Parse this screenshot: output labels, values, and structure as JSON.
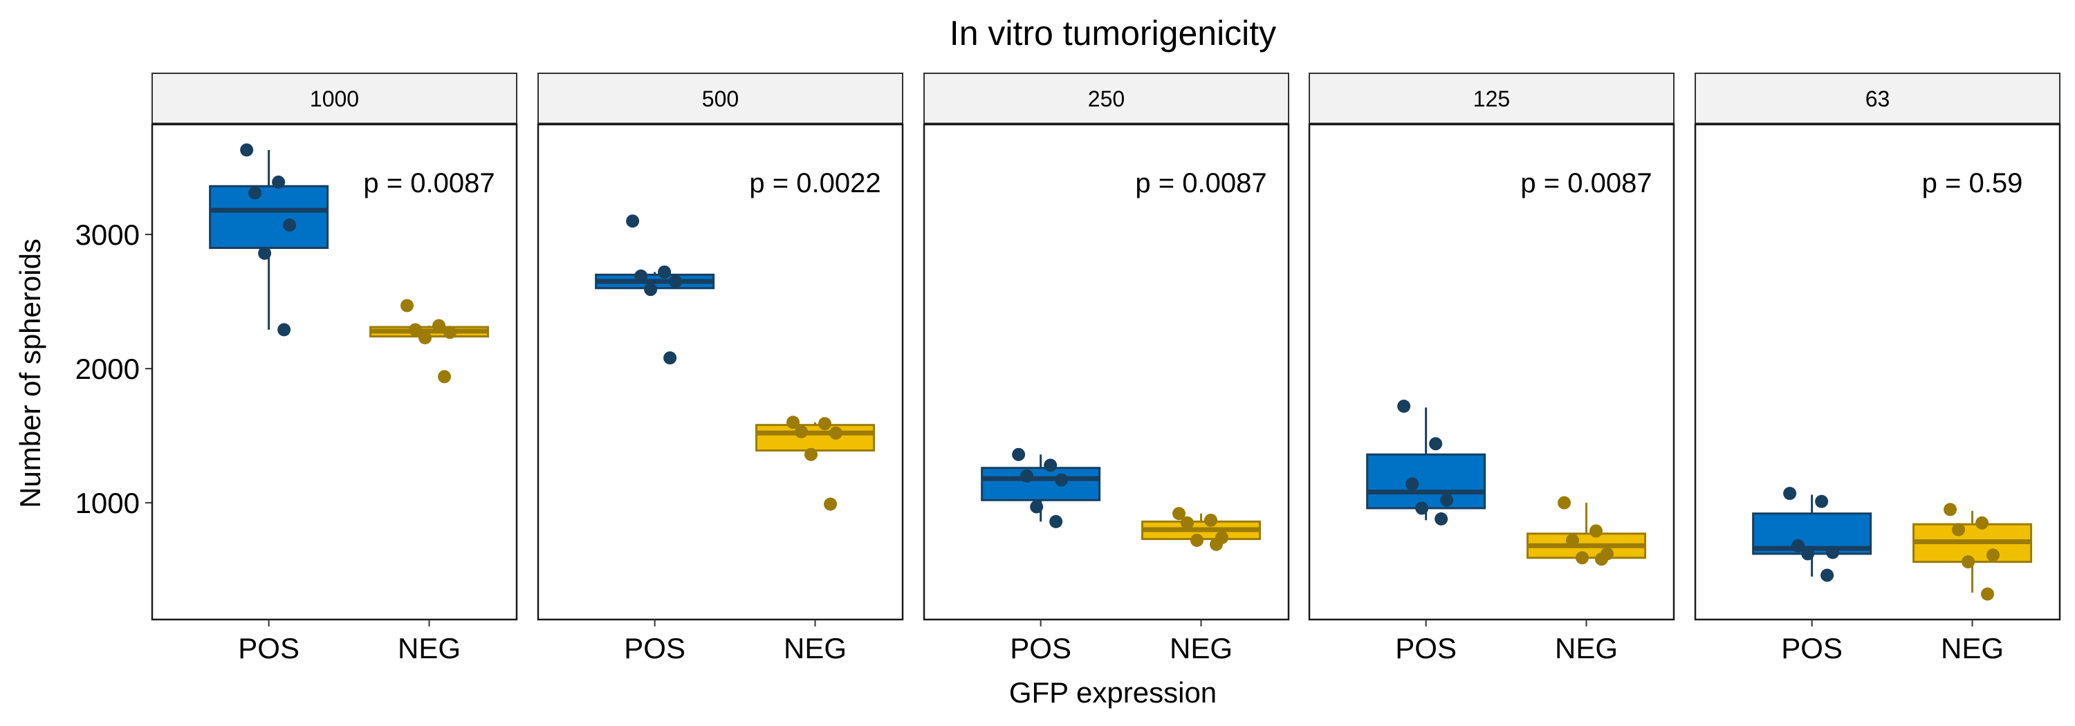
{
  "chart_data": {
    "type": "box",
    "title": "In vitro tumorigenicity",
    "xlabel": "GFP expression",
    "ylabel": "Number of spheroids",
    "categories": [
      "POS",
      "NEG"
    ],
    "ylim": [
      130,
      3820
    ],
    "yticks": [
      1000,
      2000,
      3000
    ],
    "colors": {
      "POS": {
        "fill": "#0072C6",
        "line": "#173F5F",
        "point": "#173F5F"
      },
      "NEG": {
        "fill": "#F0BF00",
        "line": "#9C7C06",
        "point": "#9C7C06"
      }
    },
    "panels": [
      {
        "facet": "1000",
        "p_value": "p = 0.0087",
        "groups": [
          {
            "category": "POS",
            "box": {
              "min": 2290,
              "q1": 2900,
              "median": 3180,
              "q3": 3360,
              "max": 3630
            },
            "points": [
              3630,
              3390,
              3310,
              3070,
              2860,
              2290
            ]
          },
          {
            "category": "NEG",
            "box": {
              "min": 2230,
              "q1": 2240,
              "median": 2280,
              "q3": 2310,
              "max": 2320
            },
            "points": [
              2470,
              2320,
              2290,
              2270,
              2230,
              1940
            ]
          }
        ]
      },
      {
        "facet": "500",
        "p_value": "p = 0.0022",
        "groups": [
          {
            "category": "POS",
            "box": {
              "min": 2580,
              "q1": 2600,
              "median": 2650,
              "q3": 2700,
              "max": 2720
            },
            "points": [
              3100,
              2720,
              2690,
              2650,
              2590,
              2080
            ]
          },
          {
            "category": "NEG",
            "box": {
              "min": 1360,
              "q1": 1390,
              "median": 1520,
              "q3": 1580,
              "max": 1600
            },
            "points": [
              1600,
              1590,
              1530,
              1520,
              1360,
              990
            ]
          }
        ]
      },
      {
        "facet": "250",
        "p_value": "p = 0.0087",
        "groups": [
          {
            "category": "POS",
            "box": {
              "min": 860,
              "q1": 1020,
              "median": 1180,
              "q3": 1260,
              "max": 1360
            },
            "points": [
              1360,
              1280,
              1200,
              1170,
              970,
              860
            ]
          },
          {
            "category": "NEG",
            "box": {
              "min": 700,
              "q1": 730,
              "median": 800,
              "q3": 860,
              "max": 920
            },
            "points": [
              920,
              870,
              850,
              740,
              720,
              690
            ]
          }
        ]
      },
      {
        "facet": "125",
        "p_value": "p = 0.0087",
        "groups": [
          {
            "category": "POS",
            "box": {
              "min": 870,
              "q1": 960,
              "median": 1080,
              "q3": 1360,
              "max": 1710
            },
            "points": [
              1720,
              1440,
              1140,
              1020,
              960,
              880
            ]
          },
          {
            "category": "NEG",
            "box": {
              "min": 580,
              "q1": 590,
              "median": 680,
              "q3": 770,
              "max": 1000
            },
            "points": [
              1000,
              790,
              720,
              620,
              590,
              580
            ]
          }
        ]
      },
      {
        "facet": "63",
        "p_value": "p = 0.59",
        "groups": [
          {
            "category": "POS",
            "box": {
              "min": 450,
              "q1": 620,
              "median": 660,
              "q3": 920,
              "max": 1060
            },
            "points": [
              1070,
              1010,
              680,
              630,
              620,
              460
            ]
          },
          {
            "category": "NEG",
            "box": {
              "min": 330,
              "q1": 560,
              "median": 710,
              "q3": 840,
              "max": 940
            },
            "points": [
              950,
              850,
              800,
              610,
              560,
              320
            ]
          }
        ]
      }
    ]
  }
}
